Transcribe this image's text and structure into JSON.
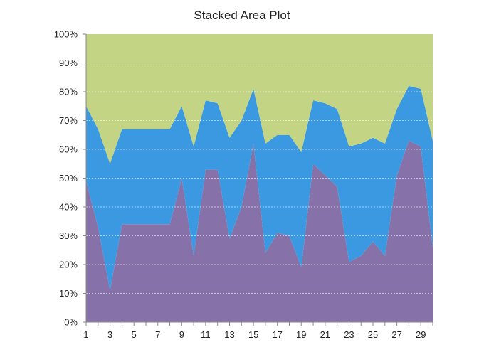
{
  "chart_data": {
    "type": "area",
    "stacked": true,
    "percent": true,
    "title": "Stacked Area Plot",
    "xlabel": "",
    "ylabel": "",
    "x": [
      1,
      2,
      3,
      4,
      5,
      6,
      7,
      8,
      9,
      10,
      11,
      12,
      13,
      14,
      15,
      16,
      17,
      18,
      19,
      20,
      21,
      22,
      23,
      24,
      25,
      26,
      27,
      28,
      29,
      30
    ],
    "x_tick_labels": [
      "1",
      "3",
      "5",
      "7",
      "9",
      "11",
      "13",
      "15",
      "17",
      "19",
      "21",
      "23",
      "25",
      "27",
      "29"
    ],
    "y_tick_labels": [
      "0%",
      "10%",
      "20%",
      "30%",
      "40%",
      "50%",
      "60%",
      "70%",
      "80%",
      "90%",
      "100%"
    ],
    "ylim": [
      0,
      100
    ],
    "grid": "horizontal dotted",
    "legend": "none",
    "series": [
      {
        "color": "#8672A8",
        "values": [
          49,
          33,
          11,
          34,
          34,
          34,
          34,
          34,
          50,
          23,
          53,
          53,
          29,
          40,
          62,
          24,
          31,
          30,
          19,
          55,
          51,
          47,
          21,
          23,
          28,
          23,
          51,
          63,
          61,
          26
        ]
      },
      {
        "color": "#3A99E0",
        "values": [
          26,
          34,
          44,
          33,
          33,
          33,
          33,
          33,
          25,
          38,
          24,
          23,
          35,
          30,
          19,
          38,
          34,
          35,
          40,
          22,
          25,
          27,
          40,
          39,
          36,
          39,
          23,
          19,
          20,
          37
        ]
      },
      {
        "color": "#C3D584",
        "values": [
          25,
          33,
          45,
          33,
          33,
          33,
          33,
          33,
          25,
          39,
          23,
          24,
          36,
          30,
          19,
          38,
          35,
          35,
          41,
          23,
          24,
          26,
          39,
          38,
          36,
          38,
          26,
          18,
          19,
          37
        ]
      }
    ]
  }
}
